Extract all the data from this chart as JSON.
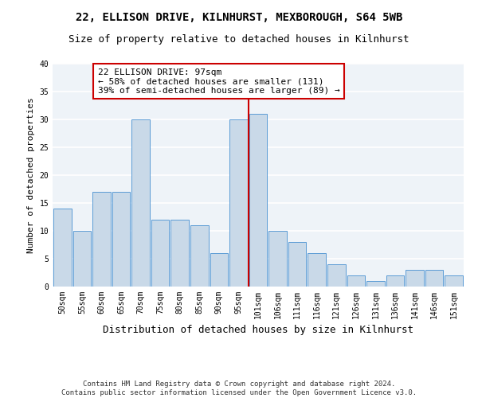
{
  "title1": "22, ELLISON DRIVE, KILNHURST, MEXBOROUGH, S64 5WB",
  "title2": "Size of property relative to detached houses in Kilnhurst",
  "xlabel": "Distribution of detached houses by size in Kilnhurst",
  "ylabel": "Number of detached properties",
  "bar_labels": [
    "50sqm",
    "55sqm",
    "60sqm",
    "65sqm",
    "70sqm",
    "75sqm",
    "80sqm",
    "85sqm",
    "90sqm",
    "95sqm",
    "101sqm",
    "106sqm",
    "111sqm",
    "116sqm",
    "121sqm",
    "126sqm",
    "131sqm",
    "136sqm",
    "141sqm",
    "146sqm",
    "151sqm"
  ],
  "bar_heights": [
    14,
    10,
    17,
    17,
    30,
    12,
    12,
    11,
    6,
    30,
    31,
    10,
    8,
    6,
    4,
    2,
    1,
    2,
    3,
    3,
    2
  ],
  "bar_color": "#c9d9e8",
  "bar_edgecolor": "#5b9bd5",
  "background_color": "#eef3f8",
  "grid_color": "#ffffff",
  "vline_x": 9.5,
  "vline_color": "#cc0000",
  "annotation_text": "22 ELLISON DRIVE: 97sqm\n← 58% of detached houses are smaller (131)\n39% of semi-detached houses are larger (89) →",
  "annotation_box_color": "#ffffff",
  "annotation_box_edgecolor": "#cc0000",
  "ylim": [
    0,
    40
  ],
  "yticks": [
    0,
    5,
    10,
    15,
    20,
    25,
    30,
    35,
    40
  ],
  "footnote": "Contains HM Land Registry data © Crown copyright and database right 2024.\nContains public sector information licensed under the Open Government Licence v3.0.",
  "title1_fontsize": 10,
  "title2_fontsize": 9,
  "xlabel_fontsize": 9,
  "ylabel_fontsize": 8,
  "tick_fontsize": 7,
  "annotation_fontsize": 8,
  "footnote_fontsize": 6.5
}
